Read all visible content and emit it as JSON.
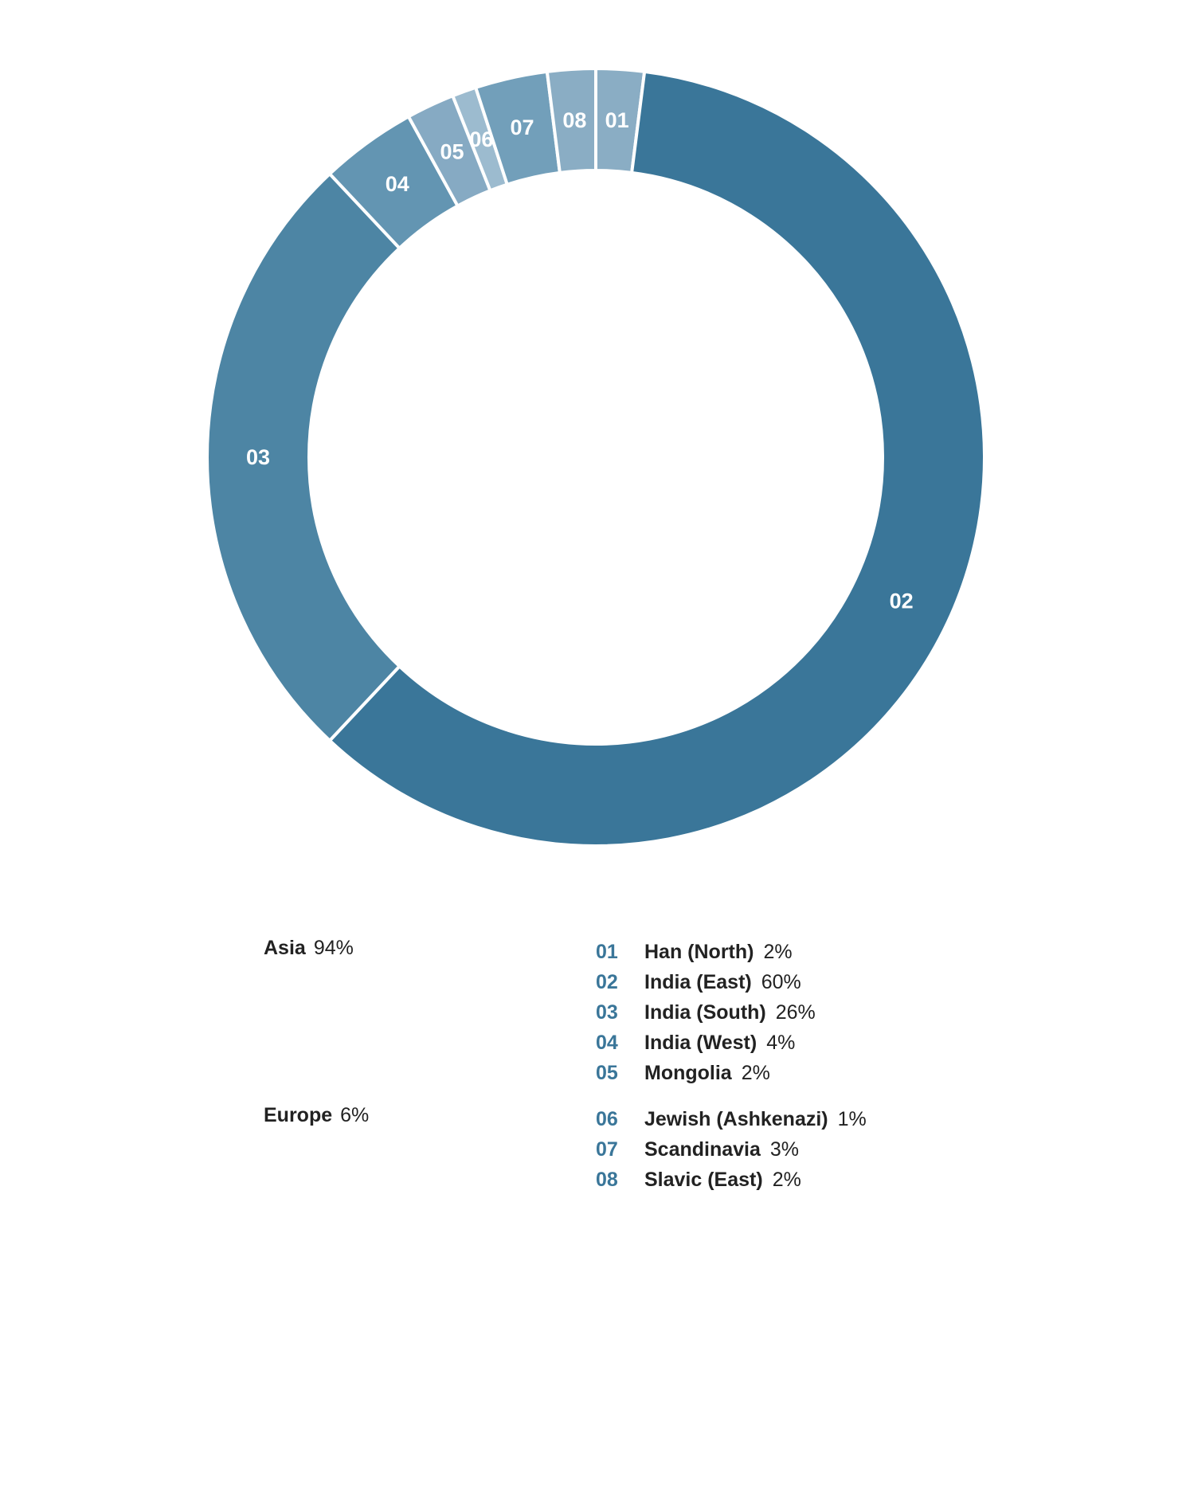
{
  "chart_data": {
    "type": "pie",
    "style": "donut",
    "legend_placement": "below",
    "slices": [
      {
        "code": "01",
        "name": "Han (North)",
        "value": 2,
        "pct_label": "2%",
        "group": "Asia",
        "color": "#8aadc4"
      },
      {
        "code": "02",
        "name": "India (East)",
        "value": 60,
        "pct_label": "60%",
        "group": "Asia",
        "color": "#3a7699"
      },
      {
        "code": "03",
        "name": "India (South)",
        "value": 26,
        "pct_label": "26%",
        "group": "Asia",
        "color": "#4d85a4"
      },
      {
        "code": "04",
        "name": "India (West)",
        "value": 4,
        "pct_label": "4%",
        "group": "Asia",
        "color": "#6395b2"
      },
      {
        "code": "05",
        "name": "Mongolia",
        "value": 2,
        "pct_label": "2%",
        "group": "Asia",
        "color": "#86aac3"
      },
      {
        "code": "06",
        "name": "Jewish (Ashkenazi)",
        "value": 1,
        "pct_label": "1%",
        "group": "Europe",
        "color": "#9cbbcf"
      },
      {
        "code": "07",
        "name": "Scandinavia",
        "value": 3,
        "pct_label": "3%",
        "group": "Europe",
        "color": "#729fba"
      },
      {
        "code": "08",
        "name": "Slavic (East)",
        "value": 2,
        "pct_label": "2%",
        "group": "Europe",
        "color": "#8aadc4"
      }
    ],
    "groups": [
      {
        "name": "Asia",
        "pct_label": "94%"
      },
      {
        "name": "Europe",
        "pct_label": "6%"
      }
    ],
    "code_color": "#3a7699"
  }
}
